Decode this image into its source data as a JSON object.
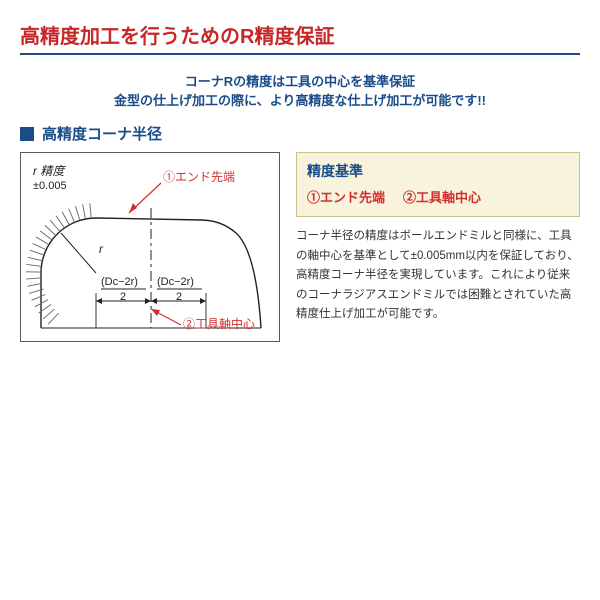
{
  "title": "高精度加工を行うためのR精度保証",
  "banner": {
    "line1": "コーナRの精度は工具の中心を基準保証",
    "line2": "金型の仕上げ加工の際に、より高精度な仕上げ加工が可能です!!"
  },
  "section_title": "高精度コーナ半径",
  "diagram": {
    "r_precision_label": "r 精度",
    "r_precision_value": "±0.005",
    "r_label": "r",
    "callout1": "①エンド先端",
    "callout2": "②工具軸中心",
    "dim_left": "(Dc−2r)",
    "dim_denom": "2",
    "dim_right": "(Dc−2r)",
    "colors": {
      "outline": "#222222",
      "tick": "#666666",
      "red": "#d32f2f",
      "dash": "#222222"
    }
  },
  "standard": {
    "title": "精度基準",
    "item1": "①エンド先端",
    "item2": "②工具軸中心"
  },
  "description": "コーナ半径の精度はボールエンドミルと同様に、工具の軸中心を基準として±0.005mm以内を保証しており、高精度コーナ半径を実現しています。これにより従来のコーナラジアスエンドミルでは困難とされていた高精度仕上げ加工が可能です。"
}
